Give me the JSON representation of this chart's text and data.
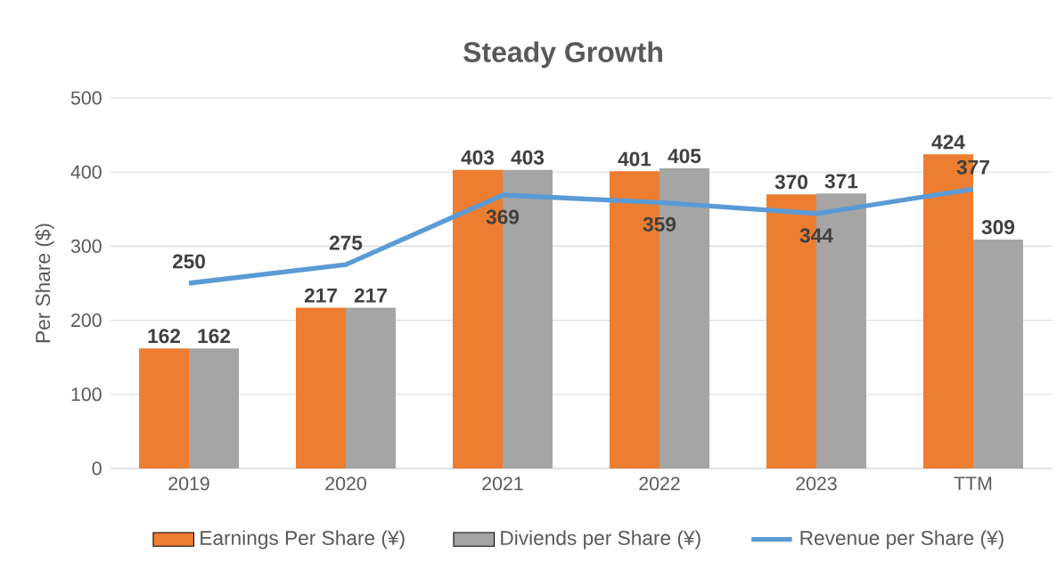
{
  "chart_data": {
    "type": "bar",
    "title": "Steady Growth",
    "ylabel": "Per Share ($)",
    "categories": [
      "2019",
      "2020",
      "2021",
      "2022",
      "2023",
      "TTM"
    ],
    "series": [
      {
        "name": "Earnings Per Share (¥)",
        "color": "#ed7d31",
        "values": [
          162,
          217,
          403,
          401,
          370,
          424
        ]
      },
      {
        "name": "Diviends per Share (¥)",
        "color": "#a5a5a5",
        "values": [
          162,
          217,
          403,
          405,
          371,
          309
        ]
      },
      {
        "name": "Revenue per Share (¥)",
        "type": "line",
        "color": "#5b9bd5",
        "values": [
          250,
          275,
          369,
          359,
          344,
          377
        ],
        "marker": "none",
        "line_style": "solid"
      }
    ],
    "ylim": [
      0,
      500
    ],
    "yticks": [
      0,
      100,
      200,
      300,
      400,
      500
    ],
    "grid": "y",
    "legend": "bottom",
    "data_labels": true
  }
}
